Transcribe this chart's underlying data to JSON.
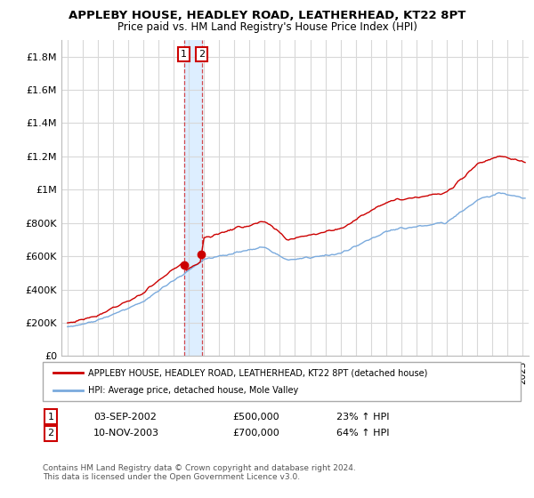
{
  "title": "APPLEBY HOUSE, HEADLEY ROAD, LEATHERHEAD, KT22 8PT",
  "subtitle": "Price paid vs. HM Land Registry's House Price Index (HPI)",
  "ylabel_ticks": [
    "£0",
    "£200K",
    "£400K",
    "£600K",
    "£800K",
    "£1M",
    "£1.2M",
    "£1.4M",
    "£1.6M",
    "£1.8M"
  ],
  "ylabel_values": [
    0,
    200000,
    400000,
    600000,
    800000,
    1000000,
    1200000,
    1400000,
    1600000,
    1800000
  ],
  "ylim": [
    0,
    1900000
  ],
  "legend_line1": "APPLEBY HOUSE, HEADLEY ROAD, LEATHERHEAD, KT22 8PT (detached house)",
  "legend_line2": "HPI: Average price, detached house, Mole Valley",
  "transaction1_date": "03-SEP-2002",
  "transaction1_price": "£500,000",
  "transaction1_hpi": "23% ↑ HPI",
  "transaction2_date": "10-NOV-2003",
  "transaction2_price": "£700,000",
  "transaction2_hpi": "64% ↑ HPI",
  "footer": "Contains HM Land Registry data © Crown copyright and database right 2024.\nThis data is licensed under the Open Government Licence v3.0.",
  "line1_color": "#cc0000",
  "line2_color": "#7aaadd",
  "shade_color": "#ddeeff",
  "background_color": "#ffffff",
  "grid_color": "#d8d8d8",
  "transaction1_x": 2002.67,
  "transaction2_x": 2003.85,
  "xlim_left": 1994.6,
  "xlim_right": 2025.4
}
